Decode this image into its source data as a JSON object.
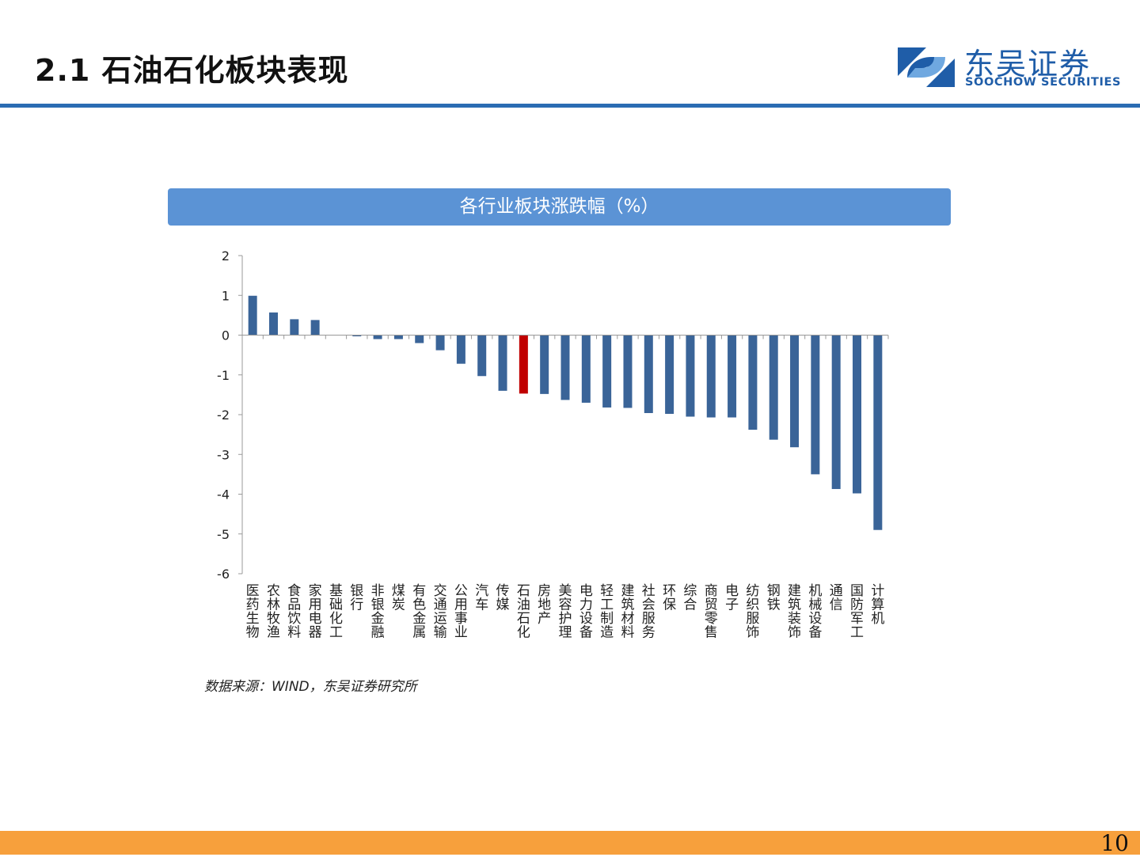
{
  "slide": {
    "title": "2.1 石油石化板块表现",
    "page_number": "10",
    "source_note": "数据来源：WIND，东吴证券研究所"
  },
  "logo": {
    "name_cn": "东吴证券",
    "name_en": "SOOCHOW SECURITIES"
  },
  "colors": {
    "accent_blue": "#2a6cb3",
    "banner_blue": "#5b93d5",
    "bar_default": "#3a6498",
    "bar_highlight": "#c00000",
    "footer_orange": "#f7a03c"
  },
  "chart_data": {
    "type": "bar",
    "title": "各行业板块涨跌幅（%）",
    "xlabel": "",
    "ylabel": "",
    "ylim": [
      -6,
      2
    ],
    "yticks": [
      2,
      1,
      0,
      -1,
      -2,
      -3,
      -4,
      -5,
      -6
    ],
    "highlight_category": "石油石化",
    "categories": [
      "医药生物",
      "农林牧渔",
      "食品饮料",
      "家用电器",
      "基础化工",
      "银行",
      "非银金融",
      "煤炭",
      "有色金属",
      "交通运输",
      "公用事业",
      "汽车",
      "传媒",
      "石油石化",
      "房地产",
      "美容护理",
      "电力设备",
      "轻工制造",
      "建筑材料",
      "社会服务",
      "环保",
      "综合",
      "商贸零售",
      "电子",
      "纺织服饰",
      "钢铁",
      "建筑装饰",
      "机械设备",
      "通信",
      "国防军工",
      "计算机"
    ],
    "values": [
      0.99,
      0.57,
      0.4,
      0.38,
      0.0,
      -0.03,
      -0.1,
      -0.1,
      -0.2,
      -0.38,
      -0.72,
      -1.03,
      -1.4,
      -1.47,
      -1.48,
      -1.63,
      -1.7,
      -1.82,
      -1.83,
      -1.96,
      -1.98,
      -2.05,
      -2.07,
      -2.07,
      -2.38,
      -2.63,
      -2.82,
      -3.5,
      -3.87,
      -3.98,
      -4.9
    ]
  }
}
